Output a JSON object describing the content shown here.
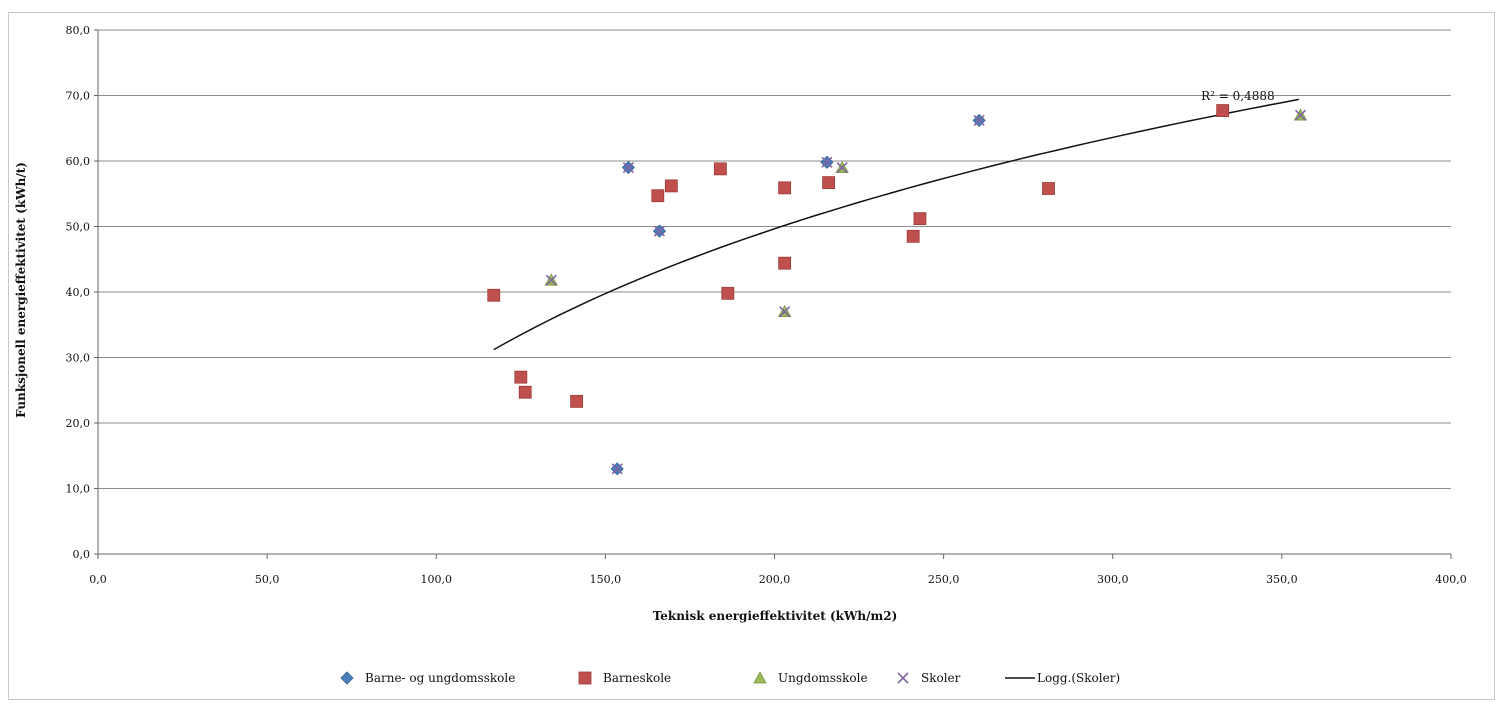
{
  "chart_data": {
    "type": "scatter",
    "xlabel": "Teknisk energieffektivitet (kWh/m2)",
    "ylabel": "Funksjonell energieffektivitet (kWh/t)",
    "xlim": [
      0,
      400
    ],
    "ylim": [
      0,
      80
    ],
    "x_ticks": [
      "0,0",
      "50,0",
      "100,0",
      "150,0",
      "200,0",
      "250,0",
      "300,0",
      "350,0",
      "400,0"
    ],
    "y_ticks": [
      "0,0",
      "10,0",
      "20,0",
      "30,0",
      "40,0",
      "50,0",
      "60,0",
      "70,0",
      "80,0"
    ],
    "grid": true,
    "legend_position": "bottom",
    "series": [
      {
        "name": "Barne- og ungdomsskole",
        "marker": "diamond",
        "color": "#4a7ebb",
        "points": [
          [
            153.5,
            13.0
          ],
          [
            156.8,
            59.0
          ],
          [
            166.0,
            49.3
          ],
          [
            215.5,
            59.8
          ],
          [
            260.5,
            66.2
          ]
        ]
      },
      {
        "name": "Barneskole",
        "marker": "square",
        "color": "#c0504d",
        "points": [
          [
            117.0,
            39.5
          ],
          [
            125.0,
            27.0
          ],
          [
            126.3,
            24.7
          ],
          [
            141.5,
            23.3
          ],
          [
            165.5,
            54.7
          ],
          [
            169.5,
            56.2
          ],
          [
            184.0,
            58.8
          ],
          [
            186.2,
            39.8
          ],
          [
            203.0,
            44.4
          ],
          [
            203.0,
            55.9
          ],
          [
            216.0,
            56.7
          ],
          [
            241.0,
            48.5
          ],
          [
            243.0,
            51.2
          ],
          [
            281.0,
            55.8
          ],
          [
            332.5,
            67.7
          ]
        ]
      },
      {
        "name": "Ungdomsskole",
        "marker": "triangle",
        "color": "#9bbb59",
        "points": [
          [
            134.0,
            41.8
          ],
          [
            203.0,
            37.0
          ],
          [
            220.0,
            59.0
          ],
          [
            355.5,
            67.0
          ]
        ]
      },
      {
        "name": "Skoler",
        "marker": "x",
        "color": "#8064a2",
        "points": [
          [
            153.5,
            13.0
          ],
          [
            156.8,
            59.0
          ],
          [
            166.0,
            49.3
          ],
          [
            215.5,
            59.8
          ],
          [
            260.5,
            66.2
          ],
          [
            134.0,
            41.8
          ],
          [
            203.0,
            37.0
          ],
          [
            220.0,
            59.0
          ],
          [
            355.5,
            67.0
          ]
        ]
      }
    ],
    "trendline": {
      "name": "Logg.(Skoler)",
      "type": "logarithmic",
      "color": "#111111",
      "x_range": [
        117.0,
        355.0
      ],
      "y_at_start": 31.2,
      "y_at_end": 69.4,
      "r2_label": "R² = 0,4888",
      "r2_at": [
        337,
        69.3
      ]
    }
  }
}
